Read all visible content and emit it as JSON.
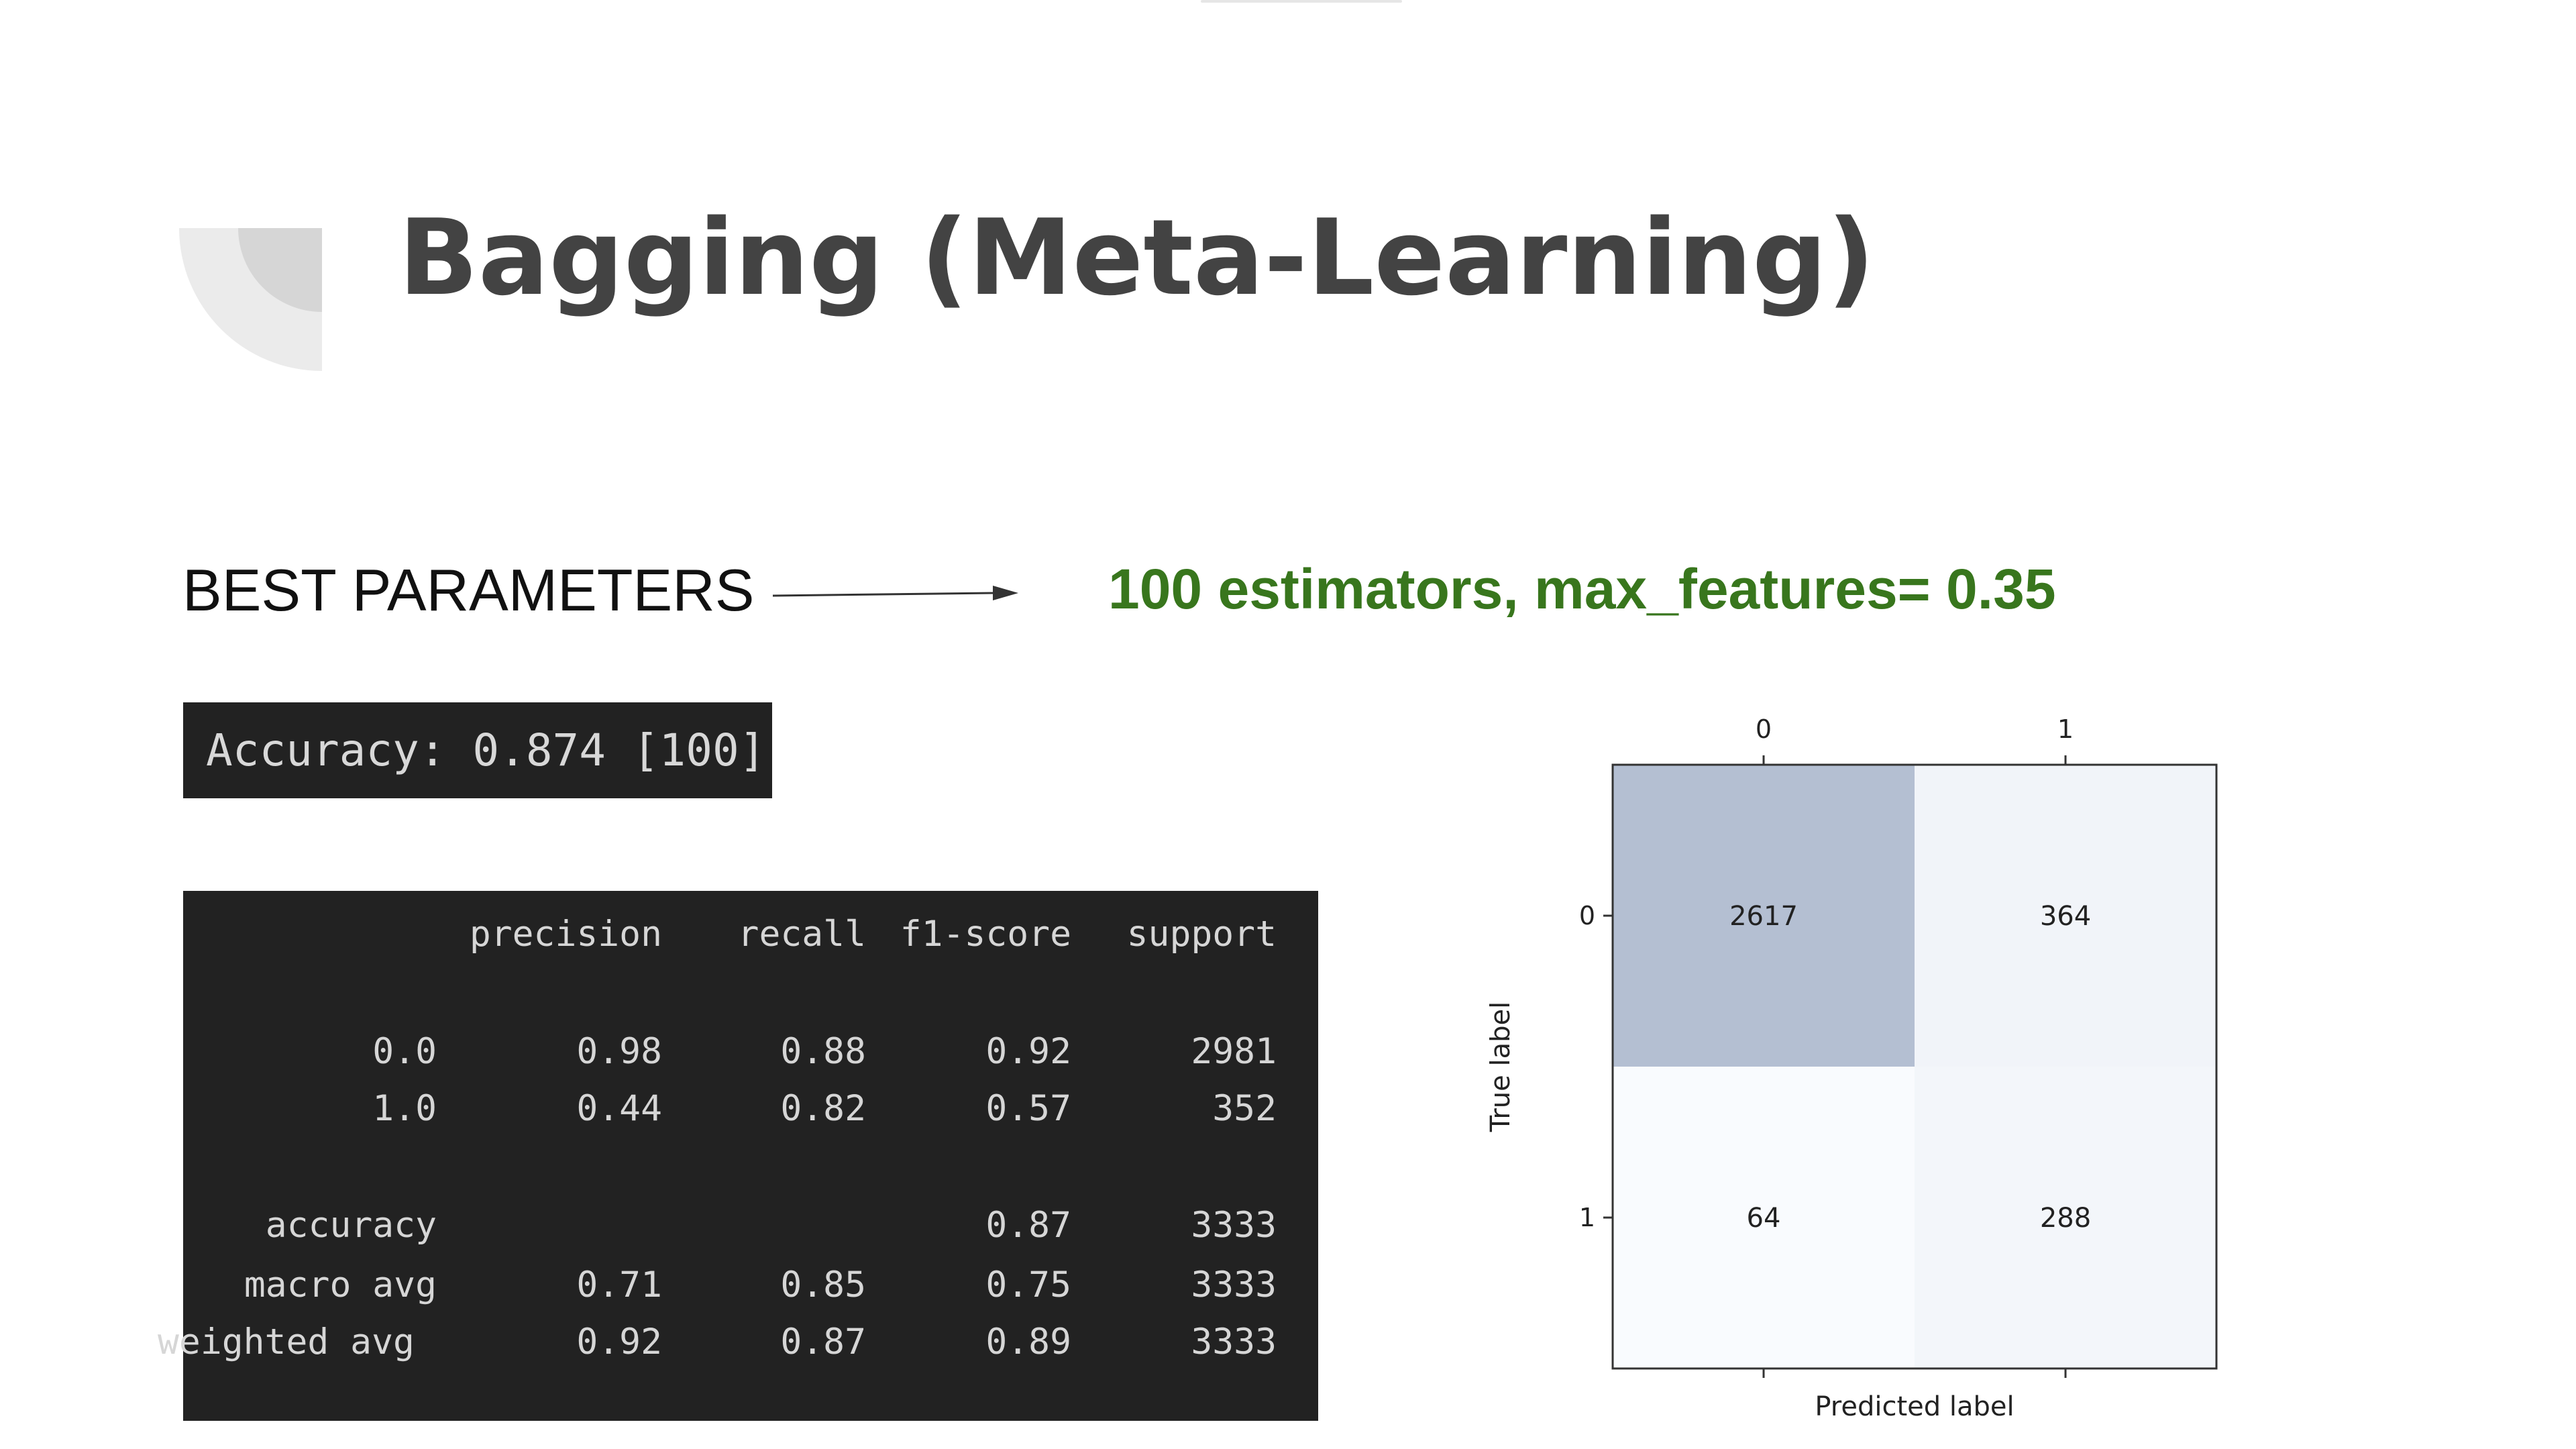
{
  "slide": {
    "title": "Bagging (Meta-Learning)",
    "best_parameters_label": "BEST PARAMETERS",
    "best_parameters_value": "100 estimators, max_features= 0.35",
    "accuracy_line": "Accuracy: 0.874 [100]",
    "colors": {
      "title": "#434343",
      "highlight_green": "#38761d",
      "terminal_bg": "#222222"
    }
  },
  "report": {
    "headers": [
      "precision",
      "recall",
      "f1-score",
      "support"
    ],
    "rows": [
      {
        "label": "0.0",
        "values": [
          "0.98",
          "0.88",
          "0.92",
          "2981"
        ]
      },
      {
        "label": "1.0",
        "values": [
          "0.44",
          "0.82",
          "0.57",
          "352"
        ]
      },
      {
        "label": "accuracy",
        "values": [
          "",
          "",
          "0.87",
          "3333"
        ]
      },
      {
        "label": "macro avg",
        "values": [
          "0.71",
          "0.85",
          "0.75",
          "3333"
        ]
      },
      {
        "label": "weighted avg",
        "values": [
          "0.92",
          "0.87",
          "0.89",
          "3333"
        ]
      }
    ]
  },
  "chart_data": {
    "type": "heatmap",
    "title": "",
    "xlabel": "Predicted label",
    "ylabel": "True label",
    "x_ticks": [
      "0",
      "1"
    ],
    "y_ticks": [
      "0",
      "1"
    ],
    "matrix": [
      [
        2617,
        364
      ],
      [
        64,
        288
      ]
    ],
    "colors": {
      "high": "#b4bfd2",
      "mid": "#f4f7fb",
      "low": "#f9fbfe"
    }
  }
}
